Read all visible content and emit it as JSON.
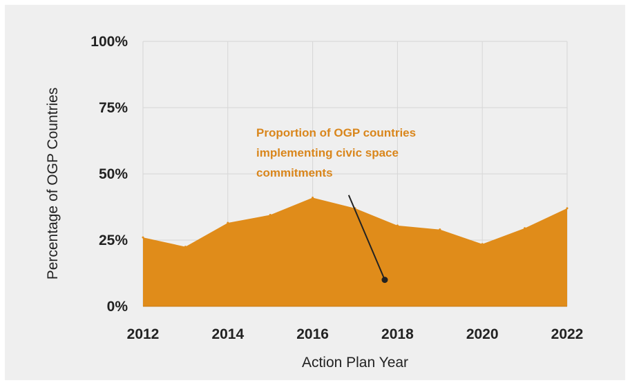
{
  "chart_data": {
    "type": "area",
    "xlabel": "Action Plan Year",
    "ylabel": "Percentage of OGP Countries",
    "x": [
      2012,
      2013,
      2014,
      2015,
      2016,
      2017,
      2018,
      2019,
      2020,
      2021,
      2022
    ],
    "x_ticks": [
      "2012",
      "2014",
      "2016",
      "2018",
      "2020",
      "2022"
    ],
    "xlim": [
      2012,
      2022
    ],
    "ylim": [
      0,
      100
    ],
    "y_ticks": [
      "0%",
      "25%",
      "50%",
      "75%",
      "100%"
    ],
    "grid": true,
    "series": [
      {
        "values": [
          26,
          22.5,
          31.5,
          34.5,
          41,
          37,
          30.5,
          29,
          23.5,
          29.5,
          37
        ],
        "color": "#e08c1a"
      }
    ],
    "annotation": {
      "lines": [
        "Proportion of OGP countries",
        "implementing civic space",
        "commitments"
      ],
      "color": "#d9861c",
      "point": {
        "x": 2017.7,
        "y": 10
      },
      "from": {
        "x": 2016.85,
        "y": 42
      }
    },
    "colors": {
      "grid": "#d6d6d6",
      "background": "#efefef",
      "text": "#222222",
      "pointer": "#222222"
    }
  }
}
